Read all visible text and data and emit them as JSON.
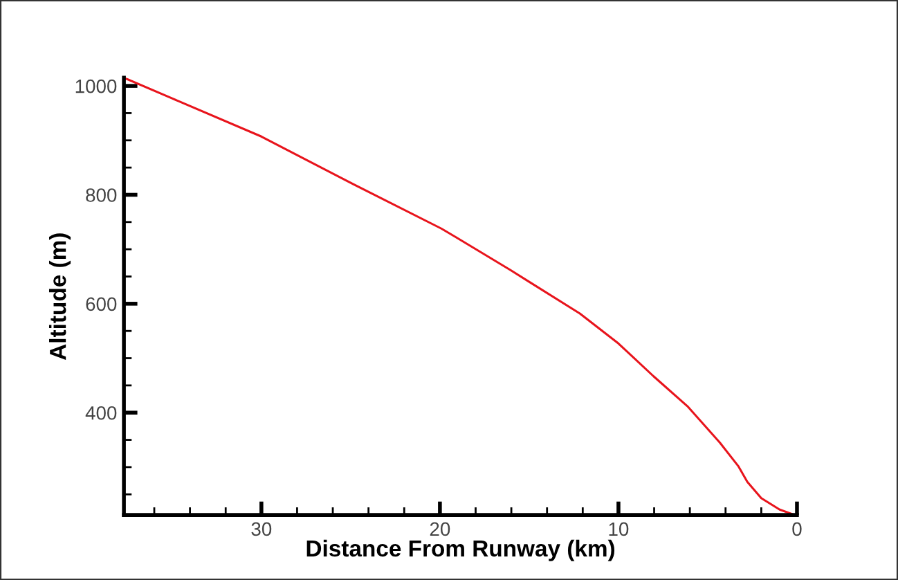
{
  "chart_data": {
    "type": "line",
    "xlabel": "Distance From Runway (km)",
    "ylabel": "Altitude (m)",
    "xlim": [
      37.7,
      0
    ],
    "ylim": [
      212,
      1015
    ],
    "xticks": [
      {
        "value": 36,
        "label": null
      },
      {
        "value": 34,
        "label": null
      },
      {
        "value": 32,
        "label": null
      },
      30,
      {
        "value": 28,
        "label": null
      },
      {
        "value": 26,
        "label": null
      },
      {
        "value": 24,
        "label": null
      },
      {
        "value": 22,
        "label": null
      },
      20,
      {
        "value": 18,
        "label": null
      },
      {
        "value": 16,
        "label": null
      },
      {
        "value": 14,
        "label": null
      },
      {
        "value": 12,
        "label": null
      },
      10,
      {
        "value": 8,
        "label": null
      },
      {
        "value": 6,
        "label": null
      },
      {
        "value": 4,
        "label": null
      },
      {
        "value": 2,
        "label": null
      },
      0
    ],
    "yticks": [
      {
        "value": 250,
        "label": null
      },
      {
        "value": 300,
        "label": null
      },
      {
        "value": 350,
        "label": null
      },
      400,
      {
        "value": 450,
        "label": null
      },
      {
        "value": 500,
        "label": null
      },
      {
        "value": 550,
        "label": null
      },
      600,
      {
        "value": 650,
        "label": null
      },
      {
        "value": 700,
        "label": null
      },
      {
        "value": 750,
        "label": null
      },
      800,
      {
        "value": 850,
        "label": null
      },
      {
        "value": 900,
        "label": null
      },
      {
        "value": 950,
        "label": null
      },
      1000
    ],
    "grid": false,
    "legend": false,
    "marker": "none",
    "line_style": "solid",
    "series": [
      {
        "color": "#e8141c",
        "x": [
          37.7,
          35,
          30,
          25,
          19.92,
          19.15,
          16.06,
          12.16,
          10,
          8.04,
          6.14,
          4.32,
          3.29,
          2.78,
          2.0,
          0.97,
          0.2
        ],
        "values": [
          1015,
          977,
          907,
          822,
          738,
          723,
          662,
          582,
          527,
          467,
          412,
          345,
          302,
          273,
          243,
          222,
          213
        ]
      }
    ]
  }
}
